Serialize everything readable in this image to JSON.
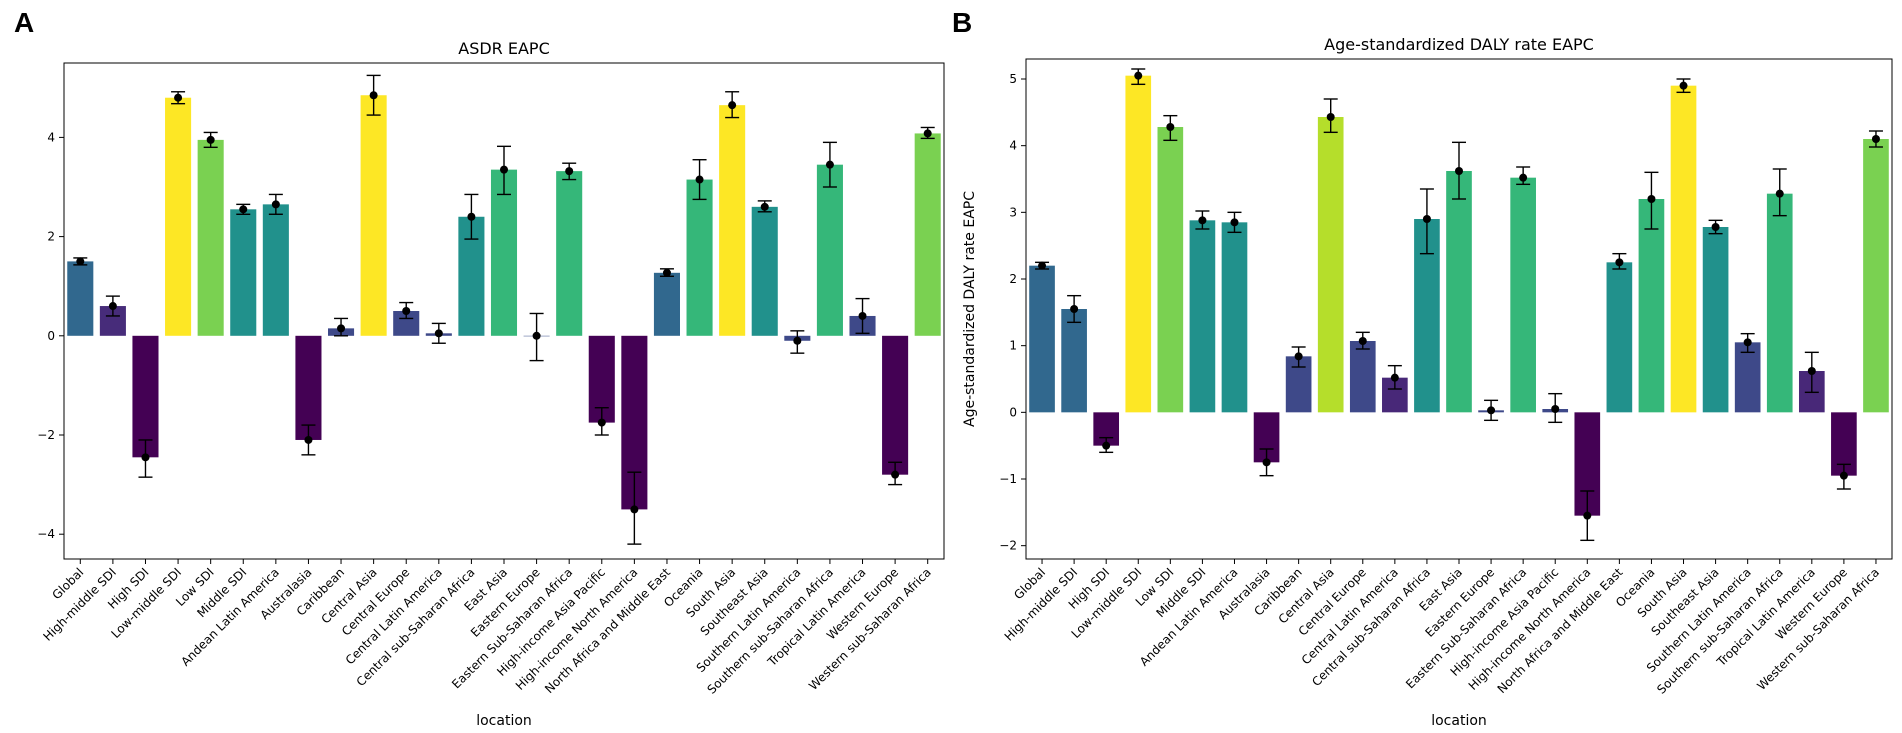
{
  "panels": {
    "a": {
      "letter": "A"
    },
    "b": {
      "letter": "B"
    }
  },
  "chart_data": [
    {
      "type": "bar",
      "panel": "A",
      "title": "ASDR EAPC",
      "xlabel": "location",
      "ylabel": "",
      "ylim": [
        -4.5,
        5.5
      ],
      "yticks": [
        -4,
        -2,
        0,
        2,
        4
      ],
      "categories": [
        "Global",
        "High-middle SDI",
        "High SDI",
        "Low-middle SDI",
        "Low SDI",
        "Middle SDI",
        "Andean Latin America",
        "Australasia",
        "Caribbean",
        "Central Asia",
        "Central Europe",
        "Central Latin America",
        "Central sub-Saharan Africa",
        "East Asia",
        "Eastern Europe",
        "Eastern Sub-Saharan Africa",
        "High-income Asia Pacific",
        "High-income North America",
        "North Africa and Middle East",
        "Oceania",
        "South Asia",
        "Southeast Asia",
        "Southern Latin America",
        "Southern sub-Saharan Africa",
        "Tropical Latin America",
        "Western Europe",
        "Western sub-Saharan Africa"
      ],
      "values": [
        1.5,
        0.6,
        -2.45,
        4.8,
        3.95,
        2.55,
        2.65,
        -2.1,
        0.15,
        4.85,
        0.5,
        0.05,
        2.4,
        3.35,
        0.0,
        3.32,
        -1.75,
        -3.5,
        1.27,
        3.15,
        4.65,
        2.6,
        -0.1,
        3.45,
        0.4,
        -2.8,
        4.08
      ],
      "errors": [
        [
          1.43,
          1.57
        ],
        [
          0.4,
          0.8
        ],
        [
          -2.85,
          -2.1
        ],
        [
          4.68,
          4.92
        ],
        [
          3.8,
          4.1
        ],
        [
          2.45,
          2.65
        ],
        [
          2.45,
          2.85
        ],
        [
          -2.4,
          -1.8
        ],
        [
          0.0,
          0.35
        ],
        [
          4.45,
          5.25
        ],
        [
          0.35,
          0.67
        ],
        [
          -0.15,
          0.25
        ],
        [
          1.95,
          2.85
        ],
        [
          2.85,
          3.82
        ],
        [
          -0.5,
          0.45
        ],
        [
          3.15,
          3.48
        ],
        [
          -2.0,
          -1.45
        ],
        [
          -4.2,
          -2.75
        ],
        [
          1.2,
          1.35
        ],
        [
          2.75,
          3.55
        ],
        [
          4.4,
          4.92
        ],
        [
          2.5,
          2.72
        ],
        [
          -0.35,
          0.1
        ],
        [
          3.0,
          3.9
        ],
        [
          0.05,
          0.75
        ],
        [
          -3.0,
          -2.55
        ],
        [
          3.98,
          4.2
        ]
      ],
      "colors": [
        "#31688e",
        "#472c7a",
        "#440154",
        "#fde725",
        "#7ad151",
        "#21918c",
        "#21918c",
        "#440154",
        "#3e4989",
        "#fde725",
        "#3e4989",
        "#3e4989",
        "#21918c",
        "#35b779",
        "#3b528b",
        "#35b779",
        "#440154",
        "#440154",
        "#31688e",
        "#35b779",
        "#fde725",
        "#21918c",
        "#3e4989",
        "#35b779",
        "#3e4989",
        "#440154",
        "#7ad151"
      ]
    },
    {
      "type": "bar",
      "panel": "B",
      "title": "Age-standardized DALY rate EAPC",
      "xlabel": "location",
      "ylabel": "Age-standardized DALY rate EAPC",
      "ylim": [
        -2.2,
        5.3
      ],
      "yticks": [
        -2,
        -1,
        0,
        1,
        2,
        3,
        4,
        5
      ],
      "categories": [
        "Global",
        "High-middle SDI",
        "High SDI",
        "Low-middle SDI",
        "Low SDI",
        "Middle SDI",
        "Andean Latin America",
        "Australasia",
        "Caribbean",
        "Central Asia",
        "Central Europe",
        "Central Latin America",
        "Central sub-Saharan Africa",
        "East Asia",
        "Eastern Europe",
        "Eastern Sub-Saharan Africa",
        "High-income Asia Pacific",
        "High-income North America",
        "North Africa and Middle East",
        "Oceania",
        "South Asia",
        "Southeast Asia",
        "Southern Latin America",
        "Southern sub-Saharan Africa",
        "Tropical Latin America",
        "Western Europe",
        "Western sub-Saharan Africa"
      ],
      "values": [
        2.2,
        1.55,
        -0.5,
        5.05,
        4.28,
        2.88,
        2.85,
        -0.75,
        0.84,
        4.43,
        1.07,
        0.52,
        2.9,
        3.62,
        0.03,
        3.52,
        0.05,
        -1.55,
        2.25,
        3.2,
        4.9,
        2.78,
        1.05,
        3.28,
        0.62,
        -0.95,
        4.1
      ],
      "errors": [
        [
          2.15,
          2.25
        ],
        [
          1.35,
          1.75
        ],
        [
          -0.6,
          -0.38
        ],
        [
          4.92,
          5.15
        ],
        [
          4.08,
          4.45
        ],
        [
          2.75,
          3.02
        ],
        [
          2.7,
          3.0
        ],
        [
          -0.95,
          -0.55
        ],
        [
          0.68,
          0.98
        ],
        [
          4.2,
          4.7
        ],
        [
          0.95,
          1.2
        ],
        [
          0.35,
          0.7
        ],
        [
          2.38,
          3.35
        ],
        [
          3.2,
          4.05
        ],
        [
          -0.12,
          0.18
        ],
        [
          3.42,
          3.68
        ],
        [
          -0.15,
          0.28
        ],
        [
          -1.92,
          -1.18
        ],
        [
          2.15,
          2.38
        ],
        [
          2.75,
          3.6
        ],
        [
          4.8,
          5.0
        ],
        [
          2.68,
          2.88
        ],
        [
          0.9,
          1.18
        ],
        [
          2.95,
          3.65
        ],
        [
          0.3,
          0.9
        ],
        [
          -1.15,
          -0.78
        ],
        [
          3.98,
          4.22
        ]
      ],
      "colors": [
        "#31688e",
        "#31688e",
        "#440154",
        "#fde725",
        "#7ad151",
        "#21918c",
        "#21918c",
        "#440154",
        "#3e4989",
        "#b5de2b",
        "#3e4989",
        "#482878",
        "#21918c",
        "#35b779",
        "#3e4989",
        "#35b779",
        "#3e4989",
        "#440154",
        "#21918c",
        "#35b779",
        "#fde725",
        "#21918c",
        "#3e4989",
        "#35b779",
        "#482878",
        "#440154",
        "#7ad151"
      ]
    }
  ]
}
